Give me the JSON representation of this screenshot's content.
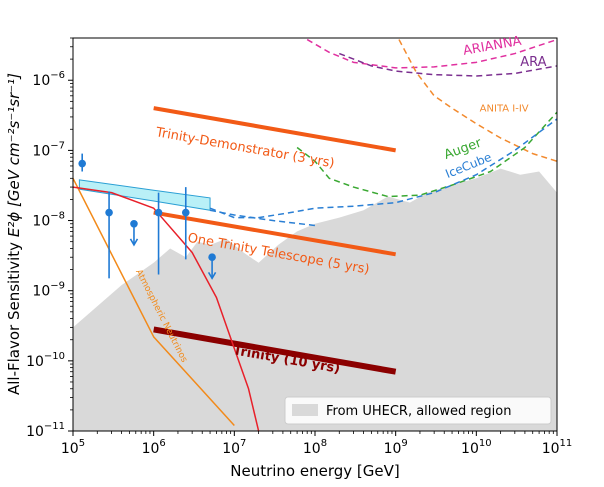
{
  "chart_data": {
    "type": "line",
    "xlabel": "Neutrino energy [GeV]",
    "ylabel_prefix": "All-Flavor Sensitivity ",
    "ylabel_math": "E²ϕ [GeV cm⁻²s⁻¹sr⁻¹]",
    "x_scale": "log",
    "y_scale": "log",
    "xlim": [
      100000,
      100000000000
    ],
    "ylim": [
      1e-11,
      4e-06
    ],
    "x_ticks": [
      {
        "value": 100000,
        "base": "10",
        "exp": "5"
      },
      {
        "value": 1000000,
        "base": "10",
        "exp": "6"
      },
      {
        "value": 10000000,
        "base": "10",
        "exp": "7"
      },
      {
        "value": 100000000,
        "base": "10",
        "exp": "8"
      },
      {
        "value": 1000000000,
        "base": "10",
        "exp": "9"
      },
      {
        "value": 10000000000,
        "base": "10",
        "exp": "10"
      },
      {
        "value": 100000000000,
        "base": "10",
        "exp": "11"
      }
    ],
    "y_ticks": [
      {
        "value": 1e-11,
        "base": "10",
        "exp": "−11"
      },
      {
        "value": 1e-10,
        "base": "10",
        "exp": "−10"
      },
      {
        "value": 1e-09,
        "base": "10",
        "exp": "−9"
      },
      {
        "value": 1e-08,
        "base": "10",
        "exp": "−8"
      },
      {
        "value": 1e-07,
        "base": "10",
        "exp": "−7"
      },
      {
        "value": 1e-06,
        "base": "10",
        "exp": "−6"
      }
    ],
    "legend": {
      "label": "From UHECR, allowed region",
      "location": "lower-right",
      "color": "#d9d9d9"
    },
    "uhecr_region": {
      "color": "#d9d9d9",
      "x": [
        100000,
        200000,
        400000,
        1000000,
        1600000,
        2500000,
        3500000,
        5000000,
        8000000,
        13000000,
        20000000,
        35000000,
        60000000,
        100000000,
        200000000,
        400000000,
        800000000,
        1500000000,
        2500000000,
        5000000000,
        10000000000,
        20000000000,
        35000000000,
        60000000000,
        100000000000
      ],
      "y": [
        3e-10,
        6e-10,
        1.2e-09,
        2.5e-09,
        4e-09,
        3e-09,
        5e-09,
        4.5e-09,
        5.5e-09,
        3.5e-09,
        2.5e-09,
        4.5e-09,
        7e-09,
        9e-09,
        1.1e-08,
        1.4e-08,
        2.2e-08,
        1.8e-08,
        2.5e-08,
        3.2e-08,
        4e-08,
        5.5e-08,
        4.5e-08,
        5e-08,
        2.5e-08
      ]
    },
    "series": [
      {
        "name": "ARIANNA",
        "label": "ARIANNA",
        "color": "#e0309f",
        "style": "dashed",
        "width": 1.5,
        "x": [
          80000000,
          150000000,
          300000000,
          1000000000,
          3000000000,
          10000000000,
          30000000000,
          100000000000
        ],
        "y": [
          3.8e-06,
          2.5e-06,
          1.8e-06,
          1.5e-06,
          1.55e-06,
          1.8e-06,
          2.4e-06,
          3.8e-06
        ]
      },
      {
        "name": "ARA",
        "label": "ARA",
        "color": "#7b2f8f",
        "style": "dashed",
        "width": 1.5,
        "x": [
          200000000,
          500000000,
          1000000000,
          3000000000,
          10000000000,
          30000000000,
          100000000000
        ],
        "y": [
          2.4e-06,
          1.6e-06,
          1.35e-06,
          1.2e-06,
          1.15e-06,
          1.25e-06,
          1.6e-06
        ]
      },
      {
        "name": "ANITA I-IV",
        "label": "ANITA I-IV",
        "color": "#f28a2e",
        "style": "dashed",
        "width": 1.5,
        "x": [
          1100000000,
          1800000000,
          3000000000,
          5000000000,
          10000000000,
          20000000000,
          50000000000,
          100000000000
        ],
        "y": [
          3.8e-06,
          1.3e-06,
          6e-07,
          4e-07,
          2.4e-07,
          1.5e-07,
          9e-08,
          7e-08
        ]
      },
      {
        "name": "Auger",
        "label": "Auger",
        "color": "#3aa832",
        "style": "dashed",
        "width": 1.5,
        "x": [
          60000000,
          100000000,
          150000000,
          300000000,
          800000000,
          2000000000,
          5000000000,
          15000000000,
          40000000000,
          100000000000
        ],
        "y": [
          1.1e-07,
          7e-08,
          4e-08,
          3e-08,
          2.2e-08,
          2.3e-08,
          3.2e-08,
          5e-08,
          1.1e-07,
          3.5e-07
        ]
      },
      {
        "name": "IceCube",
        "label": "IceCube",
        "color": "#2a7fd4",
        "style": "dashed",
        "width": 1.5,
        "x": [
          5000000,
          10000000,
          20000000,
          50000000,
          100000000,
          300000000,
          1000000000,
          3000000000,
          10000000000,
          30000000000,
          100000000000
        ],
        "y": [
          1.5e-08,
          1.1e-08,
          1.1e-08,
          1.3e-08,
          1.5e-08,
          1.6e-08,
          1.8e-08,
          2.5e-08,
          4.5e-08,
          1e-07,
          2.8e-07
        ]
      },
      {
        "name": "IceCube-low",
        "label": "",
        "color": "#2a7fd4",
        "style": "dashed",
        "width": 1.5,
        "x": [
          5000000,
          10000000,
          30000000,
          100000000
        ],
        "y": [
          1.4e-08,
          1.2e-08,
          1e-08,
          8.5e-09
        ]
      },
      {
        "name": "Trinity-Demonstrator",
        "label": "Trinity-Demonstrator (3 yrs)",
        "color": "#f25a16",
        "style": "solid",
        "width": 4,
        "x": [
          1000000,
          1000000000
        ],
        "y": [
          4e-07,
          1e-07
        ]
      },
      {
        "name": "One Trinity Telescope",
        "label": "One Trinity Telescope (5 yrs)",
        "color": "#f25a16",
        "style": "solid",
        "width": 4,
        "x": [
          1000000,
          1000000000
        ],
        "y": [
          1.3e-08,
          3.3e-09
        ]
      },
      {
        "name": "Trinity",
        "label": "Trinity (10 yrs)",
        "color": "#8b0000",
        "style": "solid",
        "width": 6,
        "x": [
          1000000,
          1000000000
        ],
        "y": [
          2.8e-10,
          7e-11
        ]
      },
      {
        "name": "Atmospheric Neutrinos",
        "label": "Atmospheric Neutrinos",
        "color": "#f28a1a",
        "style": "solid",
        "width": 1.5,
        "x": [
          100000,
          1000000,
          10000000
        ],
        "y": [
          4e-08,
          2.2e-10,
          1.2e-11
        ]
      },
      {
        "name": "Astrophysical",
        "label": "",
        "color": "#e8202a",
        "style": "solid",
        "width": 1.5,
        "x": [
          100000,
          300000,
          1000000,
          3000000,
          6000000,
          10000000,
          15000000,
          20000000
        ],
        "y": [
          3e-08,
          2.5e-08,
          1.5e-08,
          3.5e-09,
          8e-10,
          1.5e-10,
          4e-11,
          1e-11
        ]
      }
    ],
    "icecube_band": {
      "color": "#a8ecf5",
      "edge": "#2a9fd4",
      "x": [
        120000,
        1000000,
        5000000
      ],
      "y_low": [
        2.8e-08,
        1.9e-08,
        1.4e-08
      ],
      "y_high": [
        3.8e-08,
        2.7e-08,
        2.1e-08
      ]
    },
    "data_points": {
      "color": "#1f7ad4",
      "points": [
        {
          "x": 130000,
          "y": 6.5e-08,
          "lo": 5e-08,
          "hi": 9e-08,
          "upper_limit": false
        },
        {
          "x": 280000,
          "y": 1.3e-08,
          "lo": 1.5e-09,
          "hi": 2.6e-08,
          "upper_limit": false
        },
        {
          "x": 570000,
          "y": 9e-09,
          "lo": 4.5e-09,
          "hi": 9e-09,
          "upper_limit": true
        },
        {
          "x": 1150000,
          "y": 1.3e-08,
          "lo": 1.7e-09,
          "hi": 2.5e-08,
          "upper_limit": false
        },
        {
          "x": 2500000,
          "y": 1.3e-08,
          "lo": 2.8e-09,
          "hi": 3e-08,
          "upper_limit": false
        },
        {
          "x": 5300000,
          "y": 3e-09,
          "lo": 1.5e-09,
          "hi": 3e-09,
          "upper_limit": true
        }
      ]
    },
    "annotations": [
      {
        "text": "ARIANNA",
        "x": 7000000000,
        "y": 2.3e-06,
        "color": "#e0309f",
        "size": 13,
        "rotate": -10,
        "weight": "normal"
      },
      {
        "text": "ARA",
        "x": 35000000000,
        "y": 1.6e-06,
        "color": "#7b2f8f",
        "size": 13,
        "rotate": 0,
        "weight": "normal"
      },
      {
        "text": "ANITA I-IV",
        "x": 11000000000,
        "y": 3.6e-07,
        "color": "#f28a2e",
        "size": 10,
        "rotate": 0,
        "weight": "normal"
      },
      {
        "text": "Auger",
        "x": 4200000000,
        "y": 7.5e-08,
        "color": "#3aa832",
        "size": 13,
        "rotate": -20,
        "weight": "normal"
      },
      {
        "text": "IceCube",
        "x": 4400000000,
        "y": 4e-08,
        "color": "#2a7fd4",
        "size": 12,
        "rotate": -22,
        "weight": "normal"
      },
      {
        "text": "Trinity-Demonstrator (3 yrs)",
        "x": 1050000,
        "y": 1.6e-07,
        "color": "#f25a16",
        "size": 13,
        "rotate": 10,
        "weight": "normal"
      },
      {
        "text": "One Trinity Telescope (5 yrs)",
        "x": 2600000,
        "y": 5e-09,
        "color": "#f25a16",
        "size": 13,
        "rotate": 10,
        "weight": "normal"
      },
      {
        "text": "Trinity (10 yrs)",
        "x": 9500000,
        "y": 1.25e-10,
        "color": "#8b0000",
        "size": 13,
        "rotate": 10,
        "weight": "bold"
      },
      {
        "text": "Atmospheric Neutrinos",
        "x": 600000,
        "y": 1.9e-09,
        "color": "#f28a1a",
        "size": 9,
        "rotate": 63,
        "weight": "normal"
      }
    ]
  }
}
